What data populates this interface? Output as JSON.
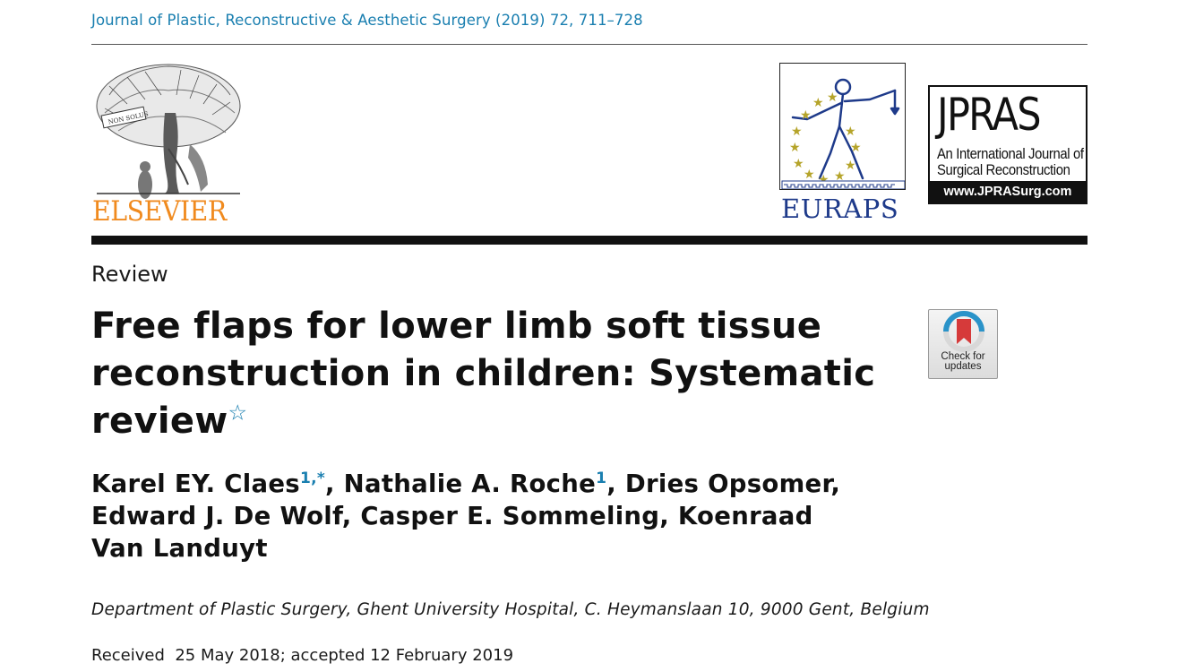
{
  "header": {
    "journal_citation": "Journal of Plastic, Reconstructive & Aesthetic Surgery (2019) 72, 711–728"
  },
  "logos": {
    "publisher_name": "ELSEVIER",
    "society_name": "EURAPS",
    "journal_logo": {
      "title": "JPRAS",
      "subtitle_line1": "An International Journal of",
      "subtitle_line2": "Surgical Reconstruction",
      "url": "www.JPRASurg.com"
    },
    "publisher_color": "#f08a1e",
    "society_color": "#1e3a8a"
  },
  "article": {
    "type": "Review",
    "title": "Free flaps for lower limb soft tissue reconstruction in children: Systematic review",
    "title_note_mark": "☆",
    "authors": [
      {
        "name": "Karel EY. Claes",
        "mark": "1,*",
        "sep": ", "
      },
      {
        "name": "Nathalie A. Roche",
        "mark": "1",
        "sep": ", "
      },
      {
        "name": "Dries Opsomer",
        "mark": "",
        "sep": ", "
      },
      {
        "name": "Edward J. De Wolf",
        "mark": "",
        "sep": ", "
      },
      {
        "name": "Casper E. Sommeling",
        "mark": "",
        "sep": ", "
      },
      {
        "name": "Koenraad Van Landuyt",
        "mark": "",
        "sep": ""
      }
    ],
    "affiliation": "Department of Plastic Surgery, Ghent University Hospital, C. Heymanslaan 10, 9000 Gent, Belgium",
    "received": "Received  25 May 2018; accepted 12 February 2019"
  },
  "check_updates": {
    "label": "Check for\nupdates",
    "icon": "bookmark-ribbon-icon"
  },
  "colors": {
    "link_blue": "#1a7fb0",
    "rule_black": "#111111"
  }
}
